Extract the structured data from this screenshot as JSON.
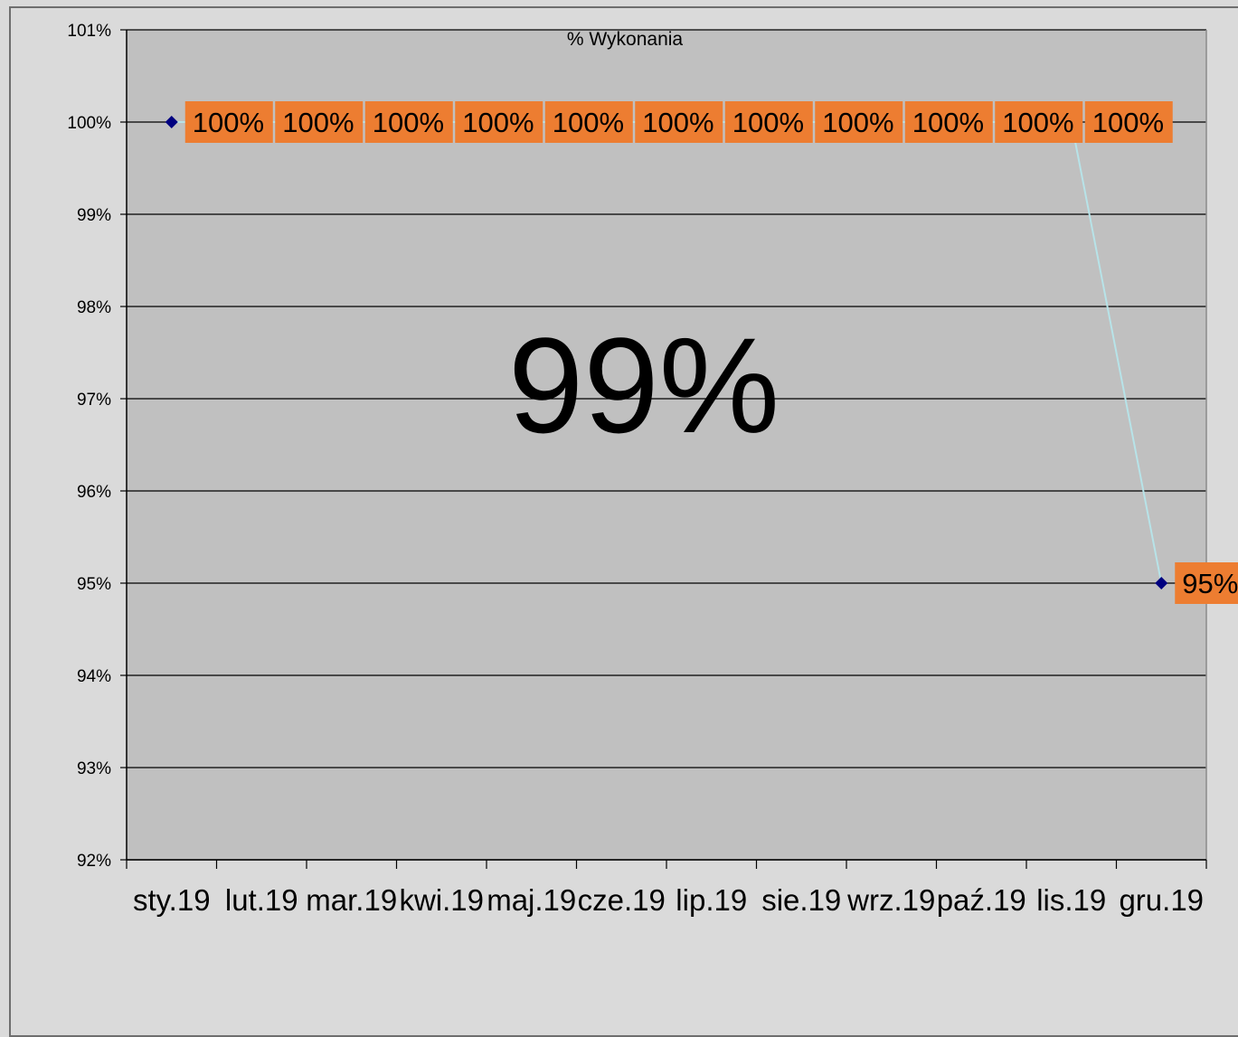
{
  "chart_data": {
    "type": "line",
    "title": "% Wykonania",
    "overlay_text": "99%",
    "categories": [
      "sty.19",
      "lut.19",
      "mar.19",
      "kwi.19",
      "maj.19",
      "cze.19",
      "lip.19",
      "sie.19",
      "wrz.19",
      "paź.19",
      "lis.19",
      "gru.19"
    ],
    "series": [
      {
        "values": [
          100,
          100,
          100,
          100,
          100,
          100,
          100,
          100,
          100,
          100,
          100,
          95
        ],
        "data_labels": [
          "100%",
          "100%",
          "100%",
          "100%",
          "100%",
          "100%",
          "100%",
          "100%",
          "100%",
          "100%",
          "100%",
          "95%"
        ],
        "line_color": "#b7e3e8",
        "marker_color": "#000080"
      }
    ],
    "ylim": [
      92,
      101
    ],
    "yticks": [
      92,
      93,
      94,
      95,
      96,
      97,
      98,
      99,
      100,
      101
    ],
    "ytick_labels": [
      "92%",
      "93%",
      "94%",
      "95%",
      "96%",
      "97%",
      "98%",
      "99%",
      "100%",
      "101%"
    ],
    "grid": true,
    "legend": "none",
    "colors": {
      "plot_background": "#c0c0c0",
      "page_background": "#dadada",
      "gridline": "#000000",
      "label_background": "#ed7d31"
    }
  }
}
